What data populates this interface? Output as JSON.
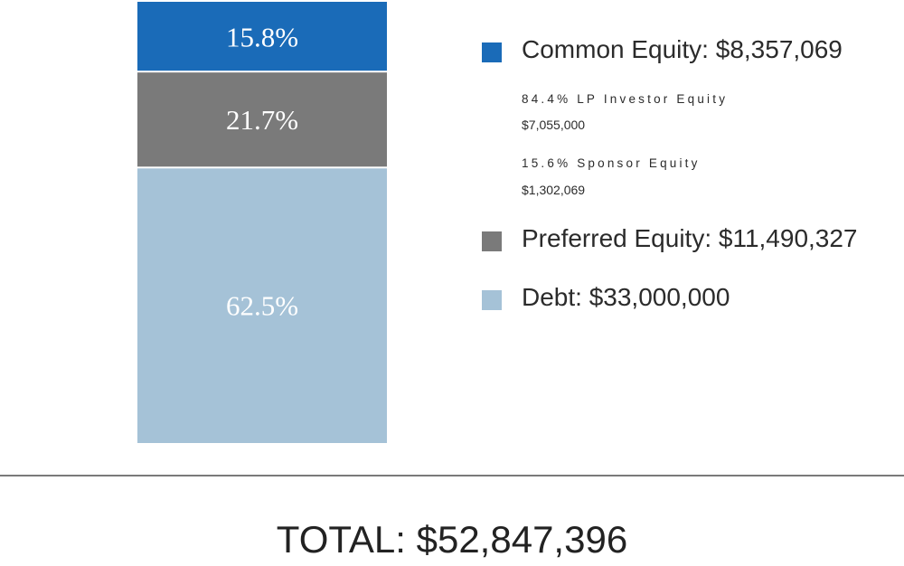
{
  "chart_data": {
    "type": "bar",
    "stacked": true,
    "orientation": "vertical",
    "segments_bottom_to_top": [
      {
        "name": "Debt",
        "value": 33000000,
        "percent_label": "62.5%",
        "percent": 62.5,
        "color": "#a5c2d7"
      },
      {
        "name": "Preferred Equity",
        "value": 11490327,
        "percent_label": "21.7%",
        "percent": 21.7,
        "color": "#7a7a7a"
      },
      {
        "name": "Common Equity",
        "value": 8357069,
        "percent_label": "15.8%",
        "percent": 15.8,
        "color": "#1a6bb8"
      }
    ],
    "legend": [
      {
        "label": "Common Equity: $8,357,069",
        "color": "#1a6bb8",
        "sub_items": [
          {
            "label": "84.4% LP Investor Equity",
            "value": "$7,055,000"
          },
          {
            "label": "15.6% Sponsor Equity",
            "value": "$1,302,069"
          }
        ]
      },
      {
        "label": "Preferred Equity: $11,490,327",
        "color": "#7a7a7a"
      },
      {
        "label": "Debt: $33,000,000",
        "color": "#a5c2d7"
      }
    ],
    "total_label": "TOTAL: $52,847,396",
    "total": 52847396
  }
}
